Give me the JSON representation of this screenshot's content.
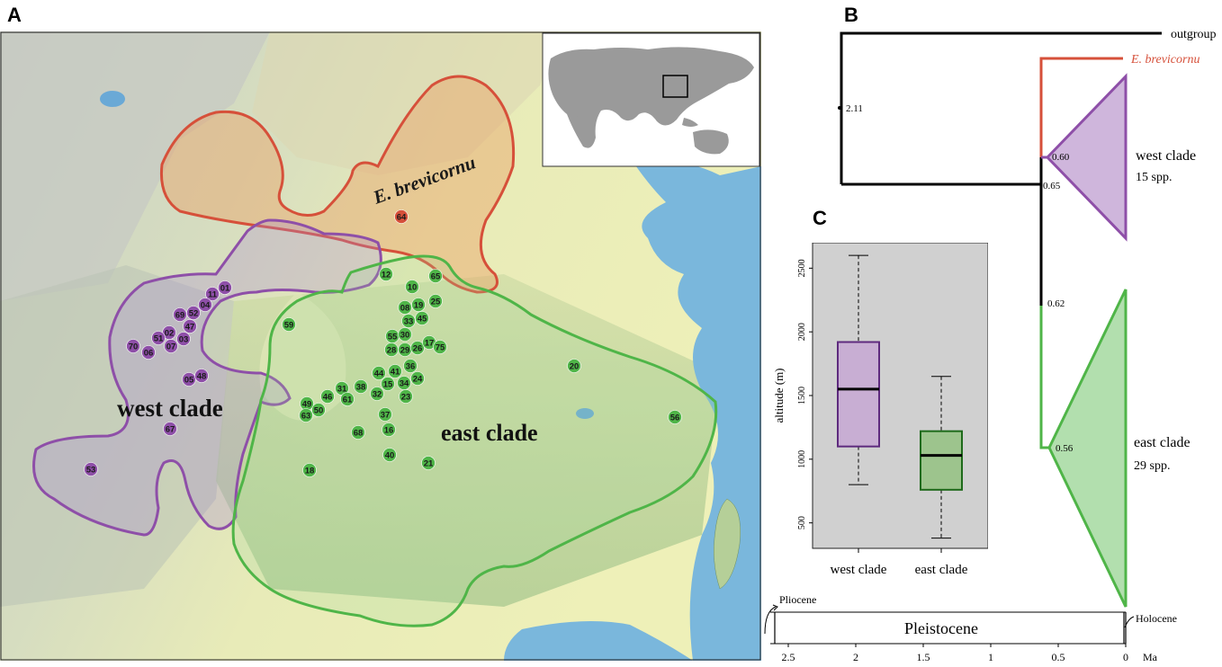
{
  "panels": {
    "a": "A",
    "b": "B",
    "c": "C"
  },
  "map": {
    "region_labels": {
      "brevicornu": "E. brevicornu",
      "west": "west clade",
      "east": "east clade"
    },
    "colors": {
      "west": "#8e4fa8",
      "east": "#4fb548",
      "brevicornu": "#d6503a"
    },
    "sites": {
      "brevicornu": [
        "64"
      ],
      "west": [
        "01",
        "11",
        "04",
        "52",
        "69",
        "47",
        "02",
        "51",
        "70",
        "07",
        "03",
        "06",
        "05",
        "48",
        "67",
        "53"
      ],
      "east": [
        "12",
        "65",
        "10",
        "25",
        "08",
        "19",
        "33",
        "45",
        "59",
        "55",
        "30",
        "28",
        "29",
        "26",
        "17",
        "75",
        "44",
        "41",
        "36",
        "34",
        "24",
        "31",
        "38",
        "15",
        "32",
        "23",
        "46",
        "61",
        "49",
        "50",
        "63",
        "37",
        "16",
        "68",
        "40",
        "21",
        "18",
        "20",
        "56"
      ]
    }
  },
  "tree": {
    "tips": {
      "outgroup": "outgroup",
      "brevicornu": "E. brevicornu"
    },
    "clades": [
      {
        "name": "west clade",
        "count": "15 spp."
      },
      {
        "name": "east clade",
        "count": "29 spp."
      }
    ],
    "node_ages": {
      "root": "2.11",
      "west_crown": "0.60",
      "split": "0.65",
      "east_stem": "0.62",
      "east_crown": "0.56"
    },
    "axis": {
      "ticks": [
        "2.5",
        "2",
        "1.5",
        "1",
        "0.5",
        "0"
      ],
      "unit": "Ma"
    },
    "epochs": {
      "pliocene": "Pliocene",
      "pleistocene": "Pleistocene",
      "holocene": "Holocene"
    }
  },
  "chart_data": {
    "type": "boxplot",
    "categories": [
      "west clade",
      "east clade"
    ],
    "ylabel": "altitude (m)",
    "yticks": [
      "500",
      "1000",
      "1500",
      "2000",
      "2500"
    ],
    "ylim": [
      300,
      2700
    ],
    "boxes": [
      {
        "name": "west clade",
        "min": 800,
        "q1": 1100,
        "median": 1550,
        "q3": 1920,
        "max": 2600,
        "color": "#c8aed3",
        "edge": "#5e2a7e"
      },
      {
        "name": "east clade",
        "min": 380,
        "q1": 760,
        "median": 1030,
        "q3": 1220,
        "max": 1650,
        "color": "#9dc48d",
        "edge": "#1e6a1a"
      }
    ],
    "grid": false
  }
}
